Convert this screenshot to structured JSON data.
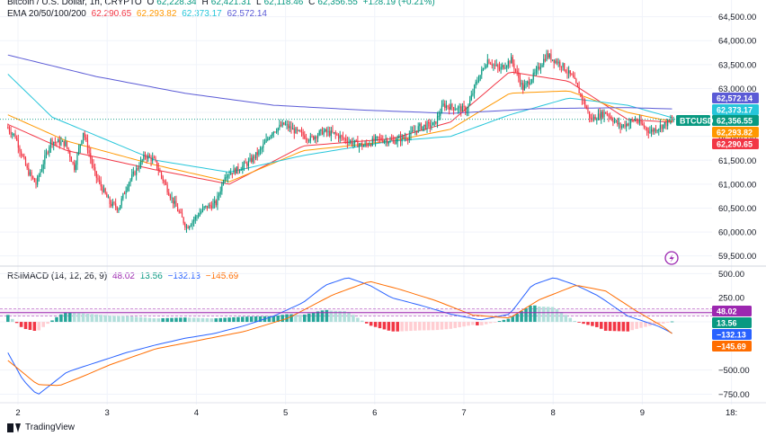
{
  "legend": {
    "symbol": "Bitcoin / U.S. Dollar, 1h, CRYPTO",
    "o_label": "O",
    "o_value": "62,228.34",
    "h_label": "H",
    "h_value": "62,421.31",
    "l_label": "L",
    "l_value": "62,118.46",
    "c_label": "C",
    "c_value": "62,356.55",
    "change": "+128.19 (+0.21%)",
    "ema_label": "EMA 20/50/100/200",
    "ema_values": [
      "62,290.65",
      "62,293.82",
      "62,373.17",
      "62,572.14"
    ],
    "rsimacd_label": "RSIMACD (14, 12, 26, 9)",
    "rsimacd_values": [
      "48.02",
      "13.56",
      "−132.13",
      "−145.69"
    ]
  },
  "footer": {
    "brand": "TradingView"
  },
  "colors": {
    "up": "#089981",
    "down": "#f23645",
    "ema20": "#f23645",
    "ema50": "#ff9800",
    "ema100": "#26c6da",
    "ema200": "#5b5bd6",
    "macd": "#2962ff",
    "signal": "#ff6d00",
    "rsi": "#9c27b0"
  },
  "chart_data": [
    {
      "type": "candlestick",
      "title": "Bitcoin / U.S. Dollar, 1h, CRYPTO",
      "x_tick_labels": [
        "2",
        "3",
        "4",
        "5",
        "6",
        "7",
        "8",
        "9",
        "18:"
      ],
      "y_tick_labels": [
        "64,500.00",
        "64,000.00",
        "63,500.00",
        "63,000.00",
        "62,500.00",
        "62,000.00",
        "61,500.00",
        "61,000.00",
        "60,500.00",
        "60,000.00",
        "59,500.00"
      ],
      "ylim": [
        59400,
        64700
      ],
      "close_path": [
        [
          0,
          62200
        ],
        [
          6,
          62000
        ],
        [
          14,
          61300
        ],
        [
          20,
          61000
        ],
        [
          30,
          61900
        ],
        [
          40,
          61850
        ],
        [
          46,
          61350
        ],
        [
          52,
          62100
        ],
        [
          60,
          61200
        ],
        [
          70,
          60600
        ],
        [
          76,
          60500
        ],
        [
          82,
          61000
        ],
        [
          88,
          61300
        ],
        [
          94,
          61600
        ],
        [
          100,
          61500
        ],
        [
          112,
          60700
        ],
        [
          122,
          60100
        ],
        [
          134,
          60500
        ],
        [
          142,
          60600
        ],
        [
          148,
          61200
        ],
        [
          156,
          61300
        ],
        [
          164,
          61450
        ],
        [
          172,
          61700
        ],
        [
          180,
          62100
        ],
        [
          188,
          62250
        ],
        [
          196,
          62100
        ],
        [
          206,
          61950
        ],
        [
          214,
          62100
        ],
        [
          222,
          62050
        ],
        [
          232,
          61900
        ],
        [
          242,
          61800
        ],
        [
          252,
          61950
        ],
        [
          262,
          61900
        ],
        [
          272,
          62000
        ],
        [
          280,
          62200
        ],
        [
          290,
          62250
        ],
        [
          296,
          62650
        ],
        [
          304,
          62600
        ],
        [
          312,
          62550
        ],
        [
          318,
          63100
        ],
        [
          326,
          63600
        ],
        [
          334,
          63400
        ],
        [
          342,
          63600
        ],
        [
          350,
          63000
        ],
        [
          358,
          63300
        ],
        [
          366,
          63700
        ],
        [
          376,
          63500
        ],
        [
          384,
          63200
        ],
        [
          390,
          62800
        ],
        [
          396,
          62350
        ],
        [
          406,
          62500
        ],
        [
          416,
          62200
        ],
        [
          426,
          62350
        ],
        [
          436,
          62100
        ],
        [
          446,
          62250
        ],
        [
          452,
          62356
        ]
      ],
      "ema_paths": {
        "EMA 20": [
          [
            0,
            62250
          ],
          [
            40,
            61700
          ],
          [
            100,
            61300
          ],
          [
            150,
            61000
          ],
          [
            200,
            61800
          ],
          [
            260,
            61950
          ],
          [
            300,
            62300
          ],
          [
            340,
            63350
          ],
          [
            380,
            63150
          ],
          [
            420,
            62350
          ],
          [
            452,
            62290
          ]
        ],
        "EMA 50": [
          [
            0,
            62450
          ],
          [
            40,
            61900
          ],
          [
            100,
            61400
          ],
          [
            150,
            61050
          ],
          [
            200,
            61700
          ],
          [
            260,
            61900
          ],
          [
            300,
            62150
          ],
          [
            340,
            62900
          ],
          [
            380,
            62950
          ],
          [
            420,
            62500
          ],
          [
            452,
            62294
          ]
        ],
        "EMA 100": [
          [
            0,
            63300
          ],
          [
            30,
            62400
          ],
          [
            100,
            61500
          ],
          [
            150,
            61250
          ],
          [
            200,
            61600
          ],
          [
            260,
            61900
          ],
          [
            300,
            62000
          ],
          [
            340,
            62450
          ],
          [
            380,
            62800
          ],
          [
            420,
            62650
          ],
          [
            452,
            62373
          ]
        ],
        "EMA 200": [
          [
            0,
            63700
          ],
          [
            60,
            63250
          ],
          [
            120,
            62900
          ],
          [
            180,
            62650
          ],
          [
            240,
            62550
          ],
          [
            300,
            62480
          ],
          [
            360,
            62580
          ],
          [
            420,
            62600
          ],
          [
            452,
            62572
          ]
        ]
      },
      "current_price": 62356.55,
      "price_tags": [
        {
          "label": "62,572.14",
          "color": "#5b5bd6"
        },
        {
          "label": "62,373.17",
          "color": "#26c6da"
        },
        {
          "label": "BTCUSD",
          "value_label": "62,356.55",
          "color": "#089981"
        },
        {
          "label": "62,293.82",
          "color": "#ff9800"
        },
        {
          "label": "62,290.65",
          "color": "#f23645"
        }
      ]
    },
    {
      "type": "indicator",
      "title": "RSIMACD (14, 12, 26, 9)",
      "y_tick_labels": [
        "500.00",
        "250.00",
        "0.00",
        "−500.00",
        "−750.00"
      ],
      "ylim": [
        -820,
        560
      ],
      "macd_path": [
        [
          0,
          -320
        ],
        [
          10,
          -600
        ],
        [
          20,
          -760
        ],
        [
          30,
          -640
        ],
        [
          40,
          -520
        ],
        [
          60,
          -420
        ],
        [
          80,
          -320
        ],
        [
          100,
          -240
        ],
        [
          120,
          -170
        ],
        [
          140,
          -120
        ],
        [
          160,
          -40
        ],
        [
          180,
          60
        ],
        [
          200,
          200
        ],
        [
          215,
          380
        ],
        [
          230,
          460
        ],
        [
          245,
          380
        ],
        [
          260,
          250
        ],
        [
          280,
          170
        ],
        [
          300,
          80
        ],
        [
          320,
          20
        ],
        [
          340,
          80
        ],
        [
          355,
          380
        ],
        [
          370,
          460
        ],
        [
          385,
          380
        ],
        [
          400,
          270
        ],
        [
          420,
          60
        ],
        [
          440,
          -40
        ],
        [
          452,
          -132
        ]
      ],
      "signal_path": [
        [
          0,
          -400
        ],
        [
          20,
          -650
        ],
        [
          35,
          -660
        ],
        [
          50,
          -570
        ],
        [
          70,
          -440
        ],
        [
          100,
          -280
        ],
        [
          130,
          -190
        ],
        [
          160,
          -100
        ],
        [
          190,
          40
        ],
        [
          220,
          280
        ],
        [
          245,
          420
        ],
        [
          265,
          340
        ],
        [
          290,
          220
        ],
        [
          315,
          70
        ],
        [
          340,
          40
        ],
        [
          360,
          230
        ],
        [
          385,
          380
        ],
        [
          405,
          320
        ],
        [
          425,
          120
        ],
        [
          445,
          -60
        ],
        [
          452,
          -146
        ]
      ],
      "rsi_value": 48.02,
      "value_tags": [
        {
          "label": "48.02",
          "color": "#9c27b0"
        },
        {
          "label": "13.56",
          "color": "#089981"
        },
        {
          "label": "−132.13",
          "color": "#2962ff"
        },
        {
          "label": "−145.69",
          "color": "#ff6d00"
        }
      ]
    }
  ]
}
